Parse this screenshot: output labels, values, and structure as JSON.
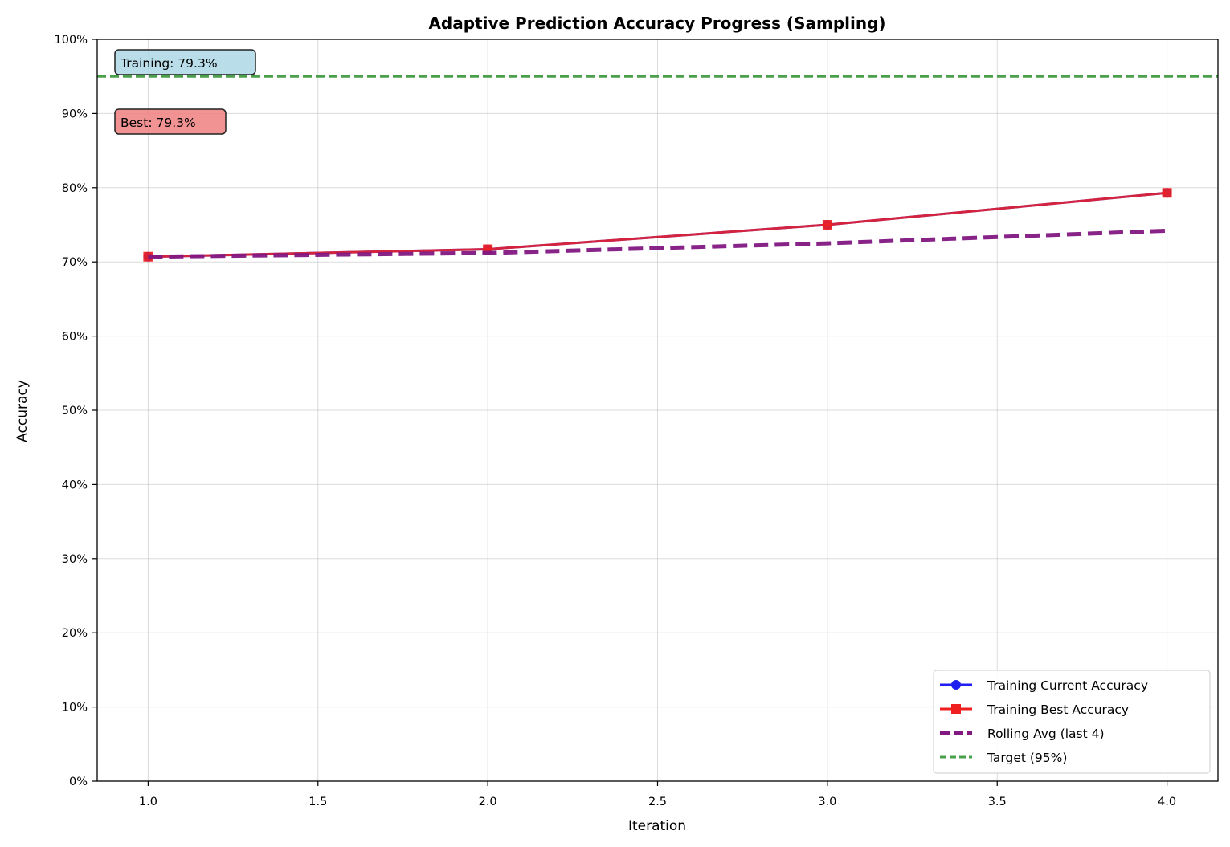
{
  "chart_data": {
    "type": "line",
    "title": "Adaptive Prediction Accuracy Progress (Sampling)",
    "xlabel": "Iteration",
    "ylabel": "Accuracy",
    "xlim": [
      0.85,
      4.15
    ],
    "ylim": [
      0,
      100
    ],
    "x_ticks": [
      1.0,
      1.5,
      2.0,
      2.5,
      3.0,
      3.5,
      4.0
    ],
    "x_tick_labels": [
      "1.0",
      "1.5",
      "2.0",
      "2.5",
      "3.0",
      "3.5",
      "4.0"
    ],
    "y_ticks": [
      0,
      10,
      20,
      30,
      40,
      50,
      60,
      70,
      80,
      90,
      100
    ],
    "y_tick_labels": [
      "0%",
      "10%",
      "20%",
      "30%",
      "40%",
      "50%",
      "60%",
      "70%",
      "80%",
      "90%",
      "100%"
    ],
    "grid": true,
    "legend_position": "bottom-right",
    "x": [
      1,
      2,
      3,
      4
    ],
    "series": [
      {
        "name": "Training Current Accuracy",
        "values": [
          70.7,
          71.7,
          75.0,
          79.3
        ],
        "color": "#1f1fef",
        "marker": "circle",
        "style": "solid"
      },
      {
        "name": "Training Best Accuracy",
        "values": [
          70.7,
          71.7,
          75.0,
          79.3
        ],
        "color": "#ef1f1f",
        "marker": "square",
        "style": "solid"
      },
      {
        "name": "Rolling Avg (last 4)",
        "values": [
          70.7,
          71.2,
          72.5,
          74.2
        ],
        "color": "#821882",
        "marker": "none",
        "style": "dashed"
      }
    ],
    "reference_lines": [
      {
        "name": "Target (95%)",
        "value": 95,
        "color": "#4aa04a",
        "style": "dashed"
      }
    ],
    "annotations": [
      {
        "text": "Training: 79.3%",
        "background": "#add8e6"
      },
      {
        "text": "Best: 79.3%",
        "background": "#f08080"
      }
    ]
  }
}
